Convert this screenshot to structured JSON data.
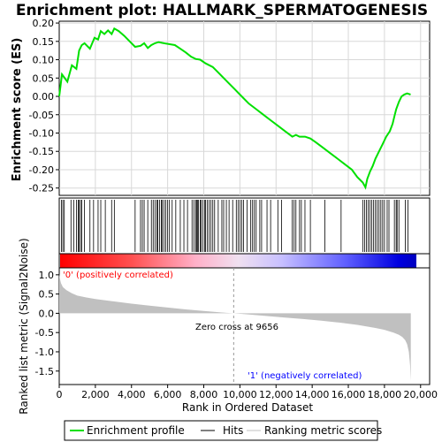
{
  "chart_data": {
    "type": "line",
    "title": "Enrichment plot: HALLMARK_SPERMATOGENESIS",
    "top_panel": {
      "ylabel": "Enrichment score (ES)",
      "ylim": [
        -0.27,
        0.205
      ],
      "yticks": [
        "0.20",
        "0.15",
        "0.10",
        "0.05",
        "0.00",
        "-0.05",
        "-0.10",
        "-0.15",
        "-0.20",
        "-0.25"
      ],
      "ytick_values": [
        0.2,
        0.15,
        0.1,
        0.05,
        0.0,
        -0.05,
        -0.1,
        -0.15,
        -0.2,
        -0.25
      ],
      "grid": true,
      "series": [
        {
          "name": "Enrichment profile",
          "color": "#00e000",
          "x": [
            0,
            150,
            450,
            700,
            950,
            1100,
            1250,
            1400,
            1700,
            1950,
            2150,
            2300,
            2500,
            2700,
            2900,
            3050,
            3300,
            3600,
            3900,
            4200,
            4500,
            4700,
            4900,
            5100,
            5300,
            5500,
            5700,
            5900,
            6150,
            6400,
            6700,
            7000,
            7300,
            7550,
            7800,
            8100,
            8500,
            8900,
            9300,
            9700,
            10100,
            10500,
            10900,
            11300,
            11700,
            12100,
            12500,
            12900,
            13100,
            13300,
            13600,
            13900,
            14200,
            14600,
            15000,
            15400,
            15800,
            16200,
            16500,
            16800,
            16950,
            17050,
            17200,
            17350,
            17500,
            17700,
            17900,
            18100,
            18300,
            18450,
            18550,
            18650,
            18800,
            18950,
            19100,
            19250,
            19450
          ],
          "y": [
            0.0,
            0.06,
            0.04,
            0.085,
            0.075,
            0.125,
            0.14,
            0.145,
            0.13,
            0.16,
            0.155,
            0.178,
            0.17,
            0.18,
            0.17,
            0.185,
            0.178,
            0.165,
            0.15,
            0.135,
            0.138,
            0.145,
            0.132,
            0.14,
            0.145,
            0.148,
            0.146,
            0.144,
            0.142,
            0.14,
            0.13,
            0.12,
            0.108,
            0.102,
            0.1,
            0.09,
            0.08,
            0.06,
            0.04,
            0.02,
            0.0,
            -0.02,
            -0.035,
            -0.05,
            -0.065,
            -0.08,
            -0.095,
            -0.11,
            -0.105,
            -0.11,
            -0.11,
            -0.115,
            -0.125,
            -0.14,
            -0.155,
            -0.17,
            -0.185,
            -0.2,
            -0.22,
            -0.235,
            -0.248,
            -0.225,
            -0.205,
            -0.19,
            -0.17,
            -0.15,
            -0.13,
            -0.11,
            -0.095,
            -0.075,
            -0.055,
            -0.035,
            -0.015,
            0.0,
            0.005,
            0.008,
            0.005
          ]
        }
      ]
    },
    "hits_panel": {
      "legend_label": "Hits",
      "hit_positions": [
        120,
        200,
        280,
        650,
        800,
        950,
        1050,
        1100,
        1180,
        1250,
        1400,
        1700,
        1900,
        2150,
        2300,
        2550,
        2900,
        3050,
        4200,
        4500,
        4600,
        4700,
        4900,
        5100,
        5200,
        5300,
        5400,
        5450,
        5550,
        5650,
        5700,
        5800,
        5900,
        6000,
        6100,
        6250,
        6450,
        6700,
        6900,
        7100,
        7350,
        7450,
        7550,
        7600,
        7650,
        7700,
        7800,
        7850,
        7950,
        8050,
        8100,
        8200,
        8300,
        8400,
        8500,
        8600,
        8800,
        9000,
        9100,
        9250,
        9400,
        9600,
        9800,
        9900,
        10000,
        10100,
        10200,
        10400,
        10600,
        10700,
        10800,
        10900,
        11100,
        11200,
        11500,
        11700,
        12100,
        12300,
        12900,
        13000,
        13100,
        13300,
        13400,
        13600,
        13900,
        14700,
        15600,
        16800,
        16900,
        17000,
        17100,
        17200,
        17300,
        17400,
        17500,
        17600,
        17700,
        17800,
        17900,
        18000,
        18150,
        18250,
        18550,
        18650,
        18700,
        18800,
        19150,
        19300
      ]
    },
    "ranking_panel": {
      "ylabel": "Ranked list metric (Signal2Noise)",
      "ylim": [
        -1.85,
        1.18
      ],
      "yticks": [
        "1.0",
        "0.5",
        "0.0",
        "-0.5",
        "-1.0",
        "-1.5"
      ],
      "ytick_values": [
        1.0,
        0.5,
        0.0,
        -0.5,
        -1.0,
        -1.5
      ],
      "legend_label": "Ranking metric scores",
      "fill_color": "#c0c0c0",
      "profile": {
        "x": [
          0,
          40,
          100,
          200,
          400,
          700,
          1000,
          1500,
          2000,
          3000,
          4000,
          5000,
          6000,
          7000,
          8000,
          9000,
          9656,
          10500,
          11500,
          12500,
          13500,
          14500,
          15500,
          16500,
          17000,
          17500,
          18000,
          18500,
          18800,
          19000,
          19150,
          19250,
          19350,
          19420,
          19460
        ],
        "y": [
          1.02,
          0.9,
          0.78,
          0.68,
          0.6,
          0.52,
          0.46,
          0.41,
          0.37,
          0.31,
          0.25,
          0.2,
          0.15,
          0.1,
          0.06,
          0.02,
          0.0,
          -0.03,
          -0.07,
          -0.11,
          -0.15,
          -0.19,
          -0.24,
          -0.3,
          -0.34,
          -0.38,
          -0.43,
          -0.5,
          -0.56,
          -0.62,
          -0.7,
          -0.8,
          -1.0,
          -1.35,
          -1.75
        ]
      },
      "annotations": {
        "positive_label": "'0' (positively correlated)",
        "negative_label": "'1' (negatively correlated)",
        "zero_cross_label": "Zero cross at 9656",
        "zero_cross_value": 9656,
        "positive_color": "#ff0000",
        "negative_color": "#0000ff"
      }
    },
    "xaxis": {
      "xlabel": "Rank in Ordered Dataset",
      "xlim": [
        0,
        20500
      ],
      "xticks": [
        "0",
        "2,000",
        "4,000",
        "6,000",
        "8,000",
        "10,000",
        "12,000",
        "14,000",
        "16,000",
        "18,000",
        "20,000"
      ],
      "xtick_values": [
        0,
        2000,
        4000,
        6000,
        8000,
        10000,
        12000,
        14000,
        16000,
        18000,
        20000
      ],
      "dataset_size": 19460
    },
    "legend": {
      "placement": "bottom",
      "entries": [
        "Enrichment profile",
        "Hits",
        "Ranking metric scores"
      ]
    }
  }
}
